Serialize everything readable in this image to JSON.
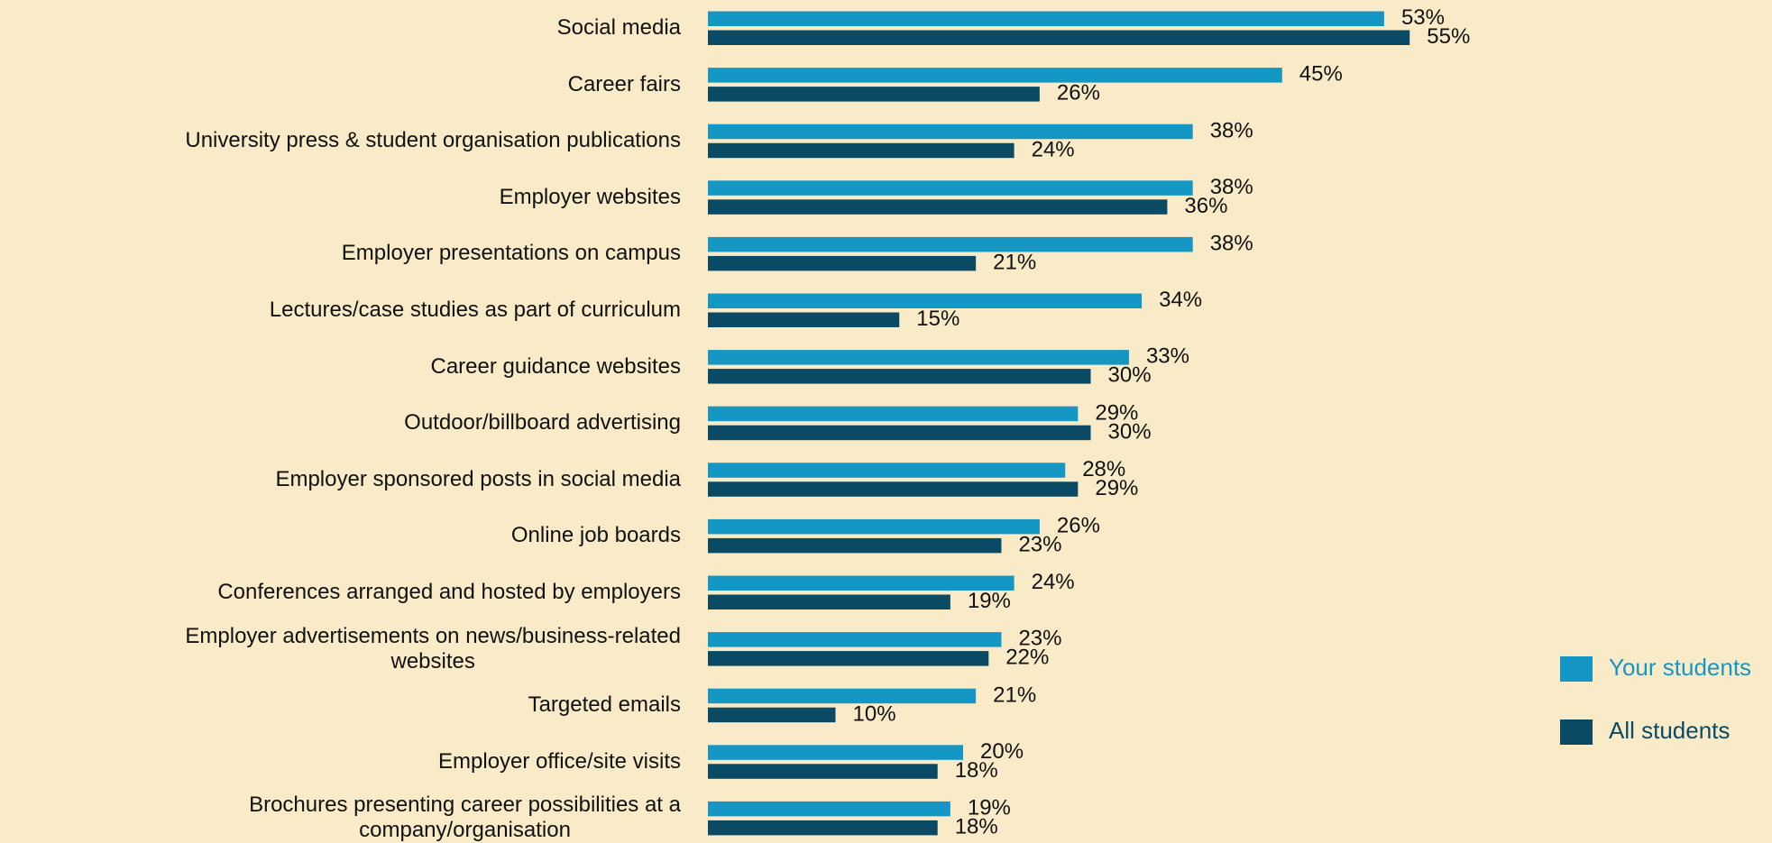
{
  "chart_data": {
    "type": "bar",
    "orientation": "horizontal",
    "categories": [
      "Social media",
      "Career fairs",
      "University press & student organisation publications",
      "Employer websites",
      "Employer presentations on campus",
      "Lectures/case studies as part of curriculum",
      "Career guidance websites",
      "Outdoor/billboard advertising",
      "Employer sponsored posts in social media",
      "Online job boards",
      "Conferences arranged and hosted by employers",
      "Employer advertisements on news/business-related\nwebsites",
      "Targeted emails",
      "Employer office/site visits",
      "Brochures presenting career possibilities at a\ncompany/organisation"
    ],
    "series": [
      {
        "name": "Your students",
        "color": "#1597c5",
        "values": [
          53,
          45,
          38,
          38,
          38,
          34,
          33,
          29,
          28,
          26,
          24,
          23,
          21,
          20,
          19
        ],
        "value_labels": [
          "53%",
          "45%",
          "38%",
          "38%",
          "38%",
          "34%",
          "33%",
          "29%",
          "28%",
          "26%",
          "24%",
          "23%",
          "21%",
          "20%",
          "19%"
        ]
      },
      {
        "name": "All students",
        "color": "#0b4a64",
        "values": [
          55,
          26,
          24,
          36,
          21,
          15,
          30,
          30,
          29,
          23,
          19,
          22,
          10,
          18,
          18
        ],
        "value_labels": [
          "55%",
          "26%",
          "24%",
          "36%",
          "21%",
          "15%",
          "30%",
          "30%",
          "29%",
          "23%",
          "19%",
          "22%",
          "10%",
          "18%",
          "18%"
        ]
      }
    ],
    "legend": "right"
  }
}
